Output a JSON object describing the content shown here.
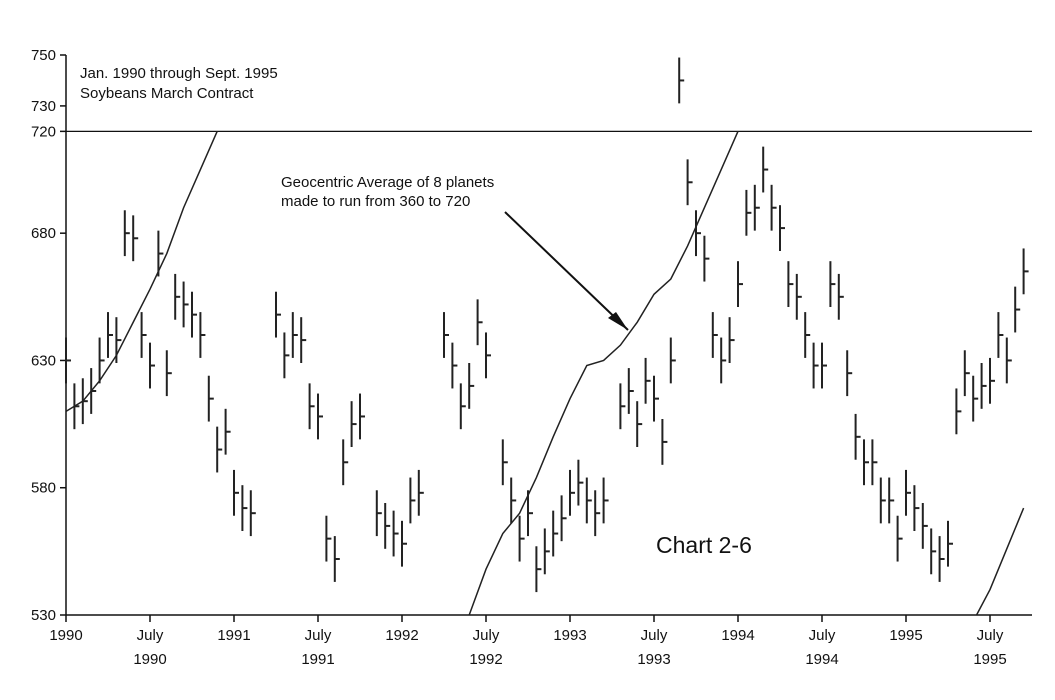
{
  "chart_data": {
    "type": "line",
    "title": "",
    "notes": {
      "header_line1": "Jan. 1990 through Sept. 1995",
      "header_line2": "Soybeans March Contract",
      "annotation_line1": "Geocentric Average of 8 planets",
      "annotation_line2": "made to run from 360 to 720",
      "chart_label": "Chart 2-6"
    },
    "xlabel": "",
    "ylabel": "",
    "ylim": [
      530,
      750
    ],
    "xlim": [
      1990.0,
      1995.75
    ],
    "y_ticks": [
      530,
      580,
      630,
      680,
      720,
      730,
      750
    ],
    "x_ticks": [
      {
        "x": 1990.0,
        "line1": "1990",
        "line2": ""
      },
      {
        "x": 1990.5,
        "line1": "July",
        "line2": "1990"
      },
      {
        "x": 1991.0,
        "line1": "1991",
        "line2": ""
      },
      {
        "x": 1991.5,
        "line1": "July",
        "line2": "1991"
      },
      {
        "x": 1992.0,
        "line1": "1992",
        "line2": ""
      },
      {
        "x": 1992.5,
        "line1": "July",
        "line2": "1992"
      },
      {
        "x": 1993.0,
        "line1": "1993",
        "line2": ""
      },
      {
        "x": 1993.5,
        "line1": "July",
        "line2": "1993"
      },
      {
        "x": 1994.0,
        "line1": "1994",
        "line2": ""
      },
      {
        "x": 1994.5,
        "line1": "July",
        "line2": "1994"
      },
      {
        "x": 1995.0,
        "line1": "1995",
        "line2": ""
      },
      {
        "x": 1995.5,
        "line1": "July",
        "line2": "1995"
      }
    ],
    "reference_line": {
      "y": 720
    },
    "grid": false,
    "series": [
      {
        "style": "price-bars",
        "x": [
          1990.0,
          1990.05,
          1990.1,
          1990.15,
          1990.2,
          1990.25,
          1990.3,
          1990.35,
          1990.4,
          1990.45,
          1990.5,
          1990.55,
          1990.6,
          1990.65,
          1990.7,
          1990.75,
          1990.8,
          1990.85,
          1990.9,
          1990.95,
          1991.0,
          1991.05,
          1991.1,
          1991.15,
          1991.2,
          1991.25,
          1991.3,
          1991.35,
          1991.4,
          1991.45,
          1991.5,
          1991.55,
          1991.6,
          1991.65,
          1991.7,
          1991.75,
          1991.8,
          1991.85,
          1991.9,
          1991.95,
          1992.0,
          1992.05,
          1992.1,
          1992.15,
          1992.2,
          1992.25,
          1992.3,
          1992.35,
          1992.4,
          1992.45,
          1992.5,
          1992.55,
          1992.6,
          1992.65,
          1992.7,
          1992.75,
          1992.8,
          1992.85,
          1992.9,
          1992.95,
          1993.0,
          1993.05,
          1993.1,
          1993.15,
          1993.2,
          1993.25,
          1993.3,
          1993.35,
          1993.4,
          1993.45,
          1993.5,
          1993.55,
          1993.6,
          1993.65,
          1993.7,
          1993.75,
          1993.8,
          1993.85,
          1993.9,
          1993.95,
          1994.0,
          1994.05,
          1994.1,
          1994.15,
          1994.2,
          1994.25,
          1994.3,
          1994.35,
          1994.4,
          1994.45,
          1994.5,
          1994.55,
          1994.6,
          1994.65,
          1994.7,
          1994.75,
          1994.8,
          1994.85,
          1994.9,
          1994.95,
          1995.0,
          1995.05,
          1995.1,
          1995.15,
          1995.2,
          1995.25,
          1995.3,
          1995.35,
          1995.4,
          1995.45,
          1995.5,
          1995.55,
          1995.6,
          1995.65,
          1995.7
        ],
        "values": [
          630,
          612,
          614,
          618,
          630,
          640,
          638,
          680,
          678,
          640,
          628,
          672,
          625,
          655,
          652,
          648,
          640,
          615,
          595,
          602,
          578,
          572,
          570,
          null,
          null,
          648,
          632,
          640,
          638,
          612,
          608,
          560,
          552,
          590,
          605,
          608,
          null,
          570,
          565,
          562,
          558,
          575,
          578,
          null,
          null,
          640,
          628,
          612,
          620,
          645,
          632,
          null,
          590,
          575,
          560,
          570,
          548,
          555,
          562,
          568,
          578,
          582,
          575,
          570,
          575,
          null,
          612,
          618,
          605,
          622,
          615,
          598,
          630,
          740,
          700,
          680,
          670,
          640,
          630,
          638,
          660,
          688,
          690,
          705,
          690,
          682,
          660,
          655,
          640,
          628,
          628,
          660,
          655,
          625,
          600,
          590,
          590,
          575,
          575,
          560,
          578,
          572,
          565,
          555,
          552,
          558,
          610,
          625,
          615,
          620,
          622,
          640,
          630,
          650,
          665
        ]
      },
      {
        "style": "planet-average",
        "x": [
          1990.0,
          1990.1,
          1990.2,
          1990.3,
          1990.4,
          1990.5,
          1990.6,
          1990.7,
          1990.8,
          1990.9
        ],
        "values": [
          610,
          614,
          622,
          632,
          645,
          658,
          672,
          690,
          705,
          720
        ]
      },
      {
        "style": "planet-average",
        "x": [
          1992.4,
          1992.5,
          1992.6,
          1992.7,
          1992.8,
          1992.9,
          1993.0,
          1993.1,
          1993.2,
          1993.3,
          1993.4,
          1993.5,
          1993.6,
          1993.7,
          1993.8,
          1993.9,
          1994.0
        ],
        "values": [
          530,
          548,
          562,
          570,
          584,
          600,
          615,
          628,
          630,
          636,
          645,
          656,
          662,
          675,
          690,
          705,
          720
        ]
      },
      {
        "style": "planet-average",
        "x": [
          1995.42,
          1995.5,
          1995.6,
          1995.7
        ],
        "values": [
          530,
          540,
          556,
          572
        ]
      }
    ]
  }
}
